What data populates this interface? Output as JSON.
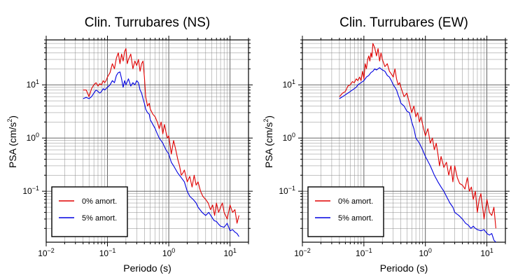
{
  "chart_data": [
    {
      "type": "line",
      "title": "Clin. Turrubares (NS)",
      "xlabel": "Periodo (s)",
      "ylabel_main": "PSA (cm/s",
      "ylabel_sup": "2",
      "ylabel_tail": ")",
      "xscale": "log",
      "yscale": "log",
      "xlim": [
        0.01,
        20
      ],
      "ylim": [
        0.011,
        70
      ],
      "grid": true,
      "legend_position": "bottom-left",
      "x_tick_labels": [
        {
          "base": "10",
          "exp": "−2"
        },
        {
          "base": "10",
          "exp": "−1"
        },
        {
          "base": "10",
          "exp": "0"
        },
        {
          "base": "10",
          "exp": "1"
        }
      ],
      "y_tick_labels": [
        {
          "base": "10",
          "exp": "−1"
        },
        {
          "base": "10",
          "exp": "0"
        },
        {
          "base": "10",
          "exp": "1"
        }
      ],
      "series": [
        {
          "name": "0% amort.",
          "color": "#e00000",
          "x": [
            0.04,
            0.045,
            0.05,
            0.055,
            0.06,
            0.065,
            0.07,
            0.075,
            0.08,
            0.085,
            0.09,
            0.095,
            0.1,
            0.11,
            0.12,
            0.13,
            0.14,
            0.15,
            0.16,
            0.17,
            0.18,
            0.19,
            0.2,
            0.21,
            0.22,
            0.24,
            0.26,
            0.28,
            0.3,
            0.32,
            0.34,
            0.36,
            0.38,
            0.4,
            0.42,
            0.45,
            0.48,
            0.5,
            0.55,
            0.6,
            0.65,
            0.7,
            0.75,
            0.8,
            0.85,
            0.9,
            0.95,
            1.0,
            1.1,
            1.2,
            1.3,
            1.4,
            1.5,
            1.6,
            1.7,
            1.8,
            2.0,
            2.2,
            2.4,
            2.6,
            2.8,
            3.0,
            3.3,
            3.6,
            4.0,
            4.4,
            4.8,
            5.2,
            5.6,
            6.0,
            6.5,
            7.0,
            7.5,
            8.0,
            9.0,
            10.0,
            11.0,
            12.0,
            13.0,
            14.0
          ],
          "values": [
            8.0,
            8.0,
            6.0,
            8.5,
            10.0,
            11.0,
            9.5,
            10.5,
            10.0,
            12.0,
            11.0,
            12.0,
            14.0,
            17.0,
            25.0,
            20.0,
            32.0,
            40.0,
            25.0,
            38.0,
            28.0,
            42.0,
            48.0,
            25.0,
            30.0,
            38.0,
            20.0,
            28.0,
            23.0,
            30.0,
            18.0,
            25.0,
            28.0,
            14.0,
            6.0,
            4.0,
            4.5,
            3.5,
            2.8,
            2.5,
            2.0,
            1.5,
            2.0,
            1.2,
            1.8,
            1.3,
            1.0,
            1.1,
            0.5,
            0.9,
            0.6,
            0.4,
            0.3,
            0.2,
            0.22,
            0.25,
            0.15,
            0.19,
            0.12,
            0.2,
            0.13,
            0.15,
            0.1,
            0.08,
            0.07,
            0.06,
            0.045,
            0.055,
            0.035,
            0.06,
            0.04,
            0.05,
            0.06,
            0.04,
            0.03,
            0.055,
            0.04,
            0.045,
            0.025,
            0.035
          ]
        },
        {
          "name": "5% amort.",
          "color": "#0000e0",
          "x": [
            0.04,
            0.045,
            0.05,
            0.055,
            0.06,
            0.065,
            0.07,
            0.075,
            0.08,
            0.085,
            0.09,
            0.1,
            0.11,
            0.12,
            0.13,
            0.14,
            0.15,
            0.16,
            0.17,
            0.18,
            0.19,
            0.2,
            0.22,
            0.24,
            0.26,
            0.28,
            0.3,
            0.32,
            0.34,
            0.36,
            0.38,
            0.4,
            0.42,
            0.45,
            0.48,
            0.5,
            0.55,
            0.6,
            0.65,
            0.7,
            0.8,
            0.9,
            1.0,
            1.1,
            1.2,
            1.4,
            1.6,
            1.8,
            2.0,
            2.2,
            2.5,
            2.8,
            3.0,
            3.5,
            4.0,
            4.5,
            5.0,
            5.5,
            6.0,
            6.5,
            7.0,
            8.0,
            9.0,
            10.0,
            11.0,
            12.0,
            13.0,
            14.0
          ],
          "values": [
            5.5,
            5.8,
            5.5,
            6.0,
            7.0,
            8.0,
            7.5,
            7.0,
            7.5,
            8.5,
            8.0,
            9.0,
            10.0,
            12.0,
            11.0,
            15.0,
            17.0,
            17.5,
            13.0,
            9.0,
            12.0,
            10.0,
            13.0,
            9.5,
            11.0,
            10.0,
            12.0,
            11.0,
            8.0,
            7.0,
            5.5,
            4.5,
            3.5,
            3.0,
            2.8,
            2.2,
            1.8,
            1.5,
            1.2,
            1.0,
            0.8,
            0.6,
            0.5,
            0.35,
            0.3,
            0.22,
            0.18,
            0.15,
            0.1,
            0.08,
            0.07,
            0.06,
            0.05,
            0.04,
            0.035,
            0.04,
            0.033,
            0.028,
            0.027,
            0.024,
            0.022,
            0.021,
            0.025,
            0.018,
            0.019,
            0.017,
            0.016,
            0.014
          ]
        }
      ]
    },
    {
      "type": "line",
      "title": "Clin. Turrubares (EW)",
      "xlabel": "Periodo (s)",
      "ylabel_main": "PSA (cm/s",
      "ylabel_sup": "2",
      "ylabel_tail": ")",
      "xscale": "log",
      "yscale": "log",
      "xlim": [
        0.01,
        20
      ],
      "ylim": [
        0.011,
        70
      ],
      "grid": true,
      "legend_position": "bottom-left",
      "x_tick_labels": [
        {
          "base": "10",
          "exp": "−2"
        },
        {
          "base": "10",
          "exp": "−1"
        },
        {
          "base": "10",
          "exp": "0"
        },
        {
          "base": "10",
          "exp": "1"
        }
      ],
      "y_tick_labels": [
        {
          "base": "10",
          "exp": "−1"
        },
        {
          "base": "10",
          "exp": "0"
        },
        {
          "base": "10",
          "exp": "1"
        }
      ],
      "series": [
        {
          "name": "0% amort.",
          "color": "#e00000",
          "x": [
            0.04,
            0.045,
            0.05,
            0.055,
            0.06,
            0.065,
            0.07,
            0.075,
            0.08,
            0.085,
            0.09,
            0.095,
            0.1,
            0.105,
            0.11,
            0.115,
            0.12,
            0.125,
            0.13,
            0.135,
            0.14,
            0.15,
            0.16,
            0.17,
            0.18,
            0.19,
            0.2,
            0.22,
            0.24,
            0.26,
            0.28,
            0.3,
            0.32,
            0.34,
            0.36,
            0.38,
            0.4,
            0.45,
            0.5,
            0.55,
            0.6,
            0.65,
            0.7,
            0.75,
            0.8,
            0.85,
            0.9,
            1.0,
            1.1,
            1.2,
            1.3,
            1.4,
            1.5,
            1.6,
            1.7,
            1.8,
            2.0,
            2.2,
            2.4,
            2.6,
            2.8,
            3.0,
            3.3,
            3.6,
            4.0,
            4.4,
            4.8,
            5.2,
            5.6,
            6.0,
            6.5,
            7.0,
            7.5,
            8.0,
            9.0,
            10.0,
            11.0,
            12.0,
            13.0,
            14.0
          ],
          "values": [
            6.0,
            7.0,
            7.5,
            9.5,
            10.0,
            11.5,
            11.0,
            13.0,
            12.0,
            14.0,
            12.0,
            18.0,
            13.0,
            25.0,
            20.0,
            30.0,
            35.0,
            28.0,
            40.0,
            33.0,
            60.0,
            50.0,
            35.0,
            48.0,
            28.0,
            40.0,
            30.0,
            22.0,
            25.0,
            18.0,
            16.0,
            14.0,
            20.0,
            13.0,
            10.0,
            11.0,
            9.0,
            6.0,
            7.0,
            4.5,
            3.0,
            4.0,
            2.5,
            3.0,
            2.0,
            2.5,
            1.8,
            1.1,
            1.5,
            0.8,
            1.0,
            0.6,
            0.8,
            0.5,
            0.3,
            0.45,
            0.28,
            0.35,
            0.2,
            0.3,
            0.15,
            0.3,
            0.18,
            0.14,
            0.13,
            0.11,
            0.18,
            0.1,
            0.12,
            0.07,
            0.1,
            0.04,
            0.07,
            0.09,
            0.03,
            0.07,
            0.04,
            0.035,
            0.05,
            0.02
          ]
        },
        {
          "name": "5% amort.",
          "color": "#0000e0",
          "x": [
            0.04,
            0.045,
            0.05,
            0.055,
            0.06,
            0.065,
            0.07,
            0.075,
            0.08,
            0.09,
            0.1,
            0.11,
            0.12,
            0.13,
            0.14,
            0.15,
            0.16,
            0.17,
            0.18,
            0.2,
            0.22,
            0.24,
            0.26,
            0.28,
            0.3,
            0.32,
            0.34,
            0.36,
            0.38,
            0.4,
            0.45,
            0.5,
            0.55,
            0.6,
            0.65,
            0.7,
            0.8,
            0.9,
            1.0,
            1.2,
            1.4,
            1.6,
            1.8,
            2.0,
            2.2,
            2.5,
            2.8,
            3.0,
            3.5,
            4.0,
            4.5,
            5.0,
            5.5,
            6.0,
            6.5,
            7.0,
            8.0,
            9.0,
            10.0,
            11.0,
            12.0,
            13.0,
            14.0
          ],
          "values": [
            5.5,
            6.0,
            6.5,
            7.0,
            7.5,
            8.0,
            8.5,
            9.0,
            10.0,
            11.0,
            12.0,
            14.0,
            15.0,
            17.0,
            18.0,
            20.0,
            19.0,
            20.0,
            21.0,
            19.0,
            18.0,
            15.0,
            14.0,
            12.0,
            10.0,
            9.0,
            8.0,
            6.5,
            5.5,
            4.5,
            4.0,
            3.2,
            3.0,
            2.0,
            1.5,
            1.0,
            0.8,
            0.6,
            0.45,
            0.3,
            0.2,
            0.15,
            0.12,
            0.1,
            0.08,
            0.06,
            0.05,
            0.04,
            0.035,
            0.03,
            0.025,
            0.023,
            0.02,
            0.022,
            0.02,
            0.019,
            0.018,
            0.019,
            0.016,
            0.015,
            0.016,
            0.012,
            0.011
          ]
        }
      ]
    }
  ]
}
